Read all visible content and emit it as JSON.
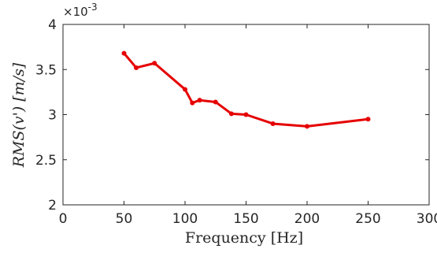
{
  "chart_data": {
    "type": "line",
    "title": "",
    "xlabel": "Frequency [Hz]",
    "ylabel": "RMS(v') [m/s]",
    "y_exponent_label": "×10",
    "y_exponent_power": "-3",
    "xlim": [
      0,
      300
    ],
    "ylim": [
      2,
      4
    ],
    "xticks": [
      0,
      50,
      100,
      150,
      200,
      250,
      300
    ],
    "yticks": [
      2,
      2.5,
      3,
      3.5,
      4
    ],
    "grid": false,
    "legend": "none",
    "line_color": "#e60000",
    "series": [
      {
        "x": [
          50,
          60,
          75,
          100,
          106,
          112,
          125,
          138,
          150,
          172,
          200,
          250
        ],
        "y": [
          3.68,
          3.52,
          3.57,
          3.28,
          3.13,
          3.16,
          3.14,
          3.01,
          3.0,
          2.9,
          2.87,
          2.95
        ]
      }
    ]
  }
}
